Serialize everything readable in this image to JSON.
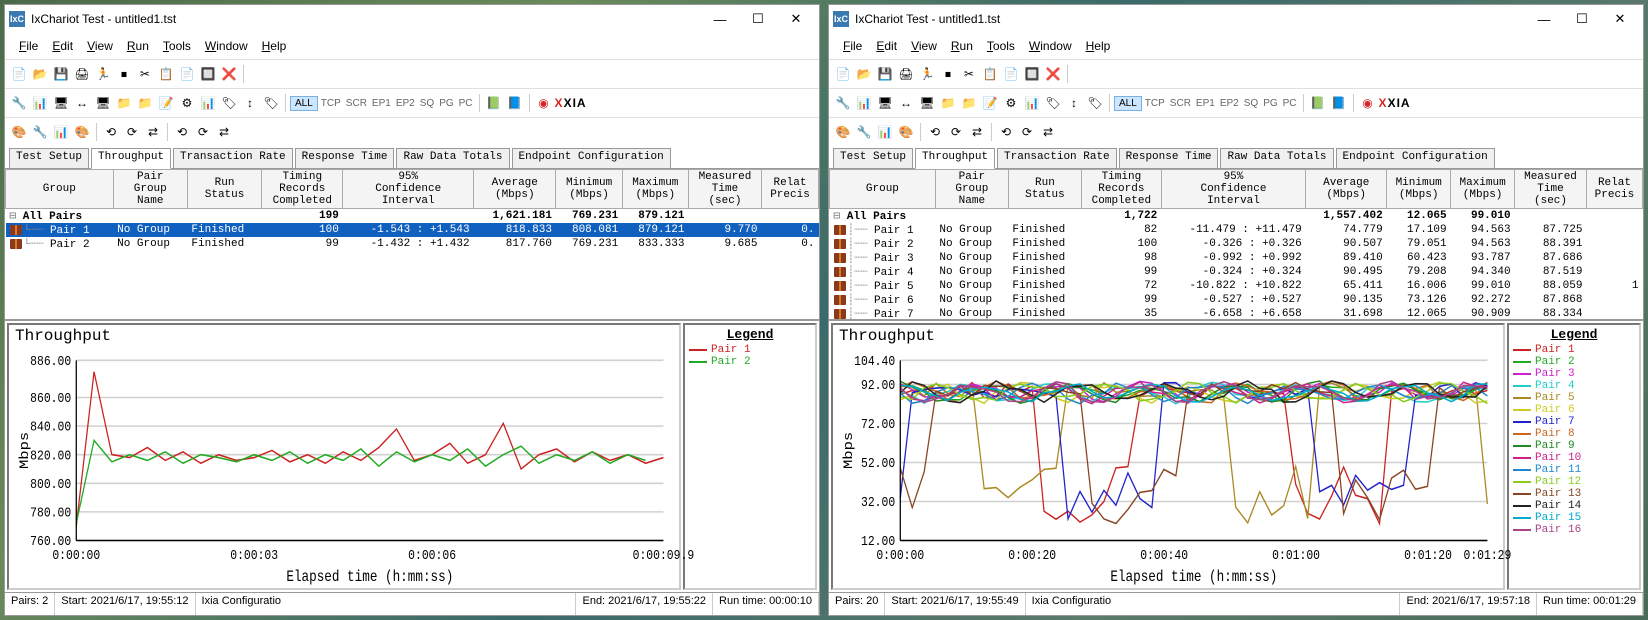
{
  "common": {
    "app_icon": "IxC",
    "title": "IxChariot Test - untitled1.tst",
    "menus": [
      "File",
      "Edit",
      "View",
      "Run",
      "Tools",
      "Window",
      "Help"
    ],
    "tabs": [
      "Test Setup",
      "Throughput",
      "Transaction Rate",
      "Response Time",
      "Raw Data Totals",
      "Endpoint Configuration"
    ],
    "active_tab": 1,
    "toolbar2_txt": [
      "TCP",
      "SCR",
      "EP1",
      "EP2",
      "SQ",
      "PG",
      "PC"
    ],
    "toolbar2_all": "ALL",
    "ixia": "IXIA",
    "grid_headers": [
      "Group",
      "Pair Group Name",
      "Run Status",
      "Timing Records Completed",
      "95% Confidence Interval",
      "Average (Mbps)",
      "Minimum (Mbps)",
      "Maximum (Mbps)",
      "Measured Time (sec)",
      "Relat Precis"
    ],
    "allpairs_label": "All Pairs",
    "chart_title": "Throughput",
    "legend_title": "Legend",
    "ylabel": "Mbps",
    "xlabel": "Elapsed time (h:mm:ss)",
    "status_labels": {
      "pairs": "Pairs:",
      "start": "Start:",
      "cfg": "Ixia Configuratio",
      "end": "End:",
      "run": "Run time:"
    }
  },
  "left": {
    "summary": {
      "records": "199",
      "avg": "1,621.181",
      "min": "769.231",
      "max": "879.121"
    },
    "rows": [
      {
        "pair": "Pair 1",
        "grp": "No Group",
        "status": "Finished",
        "rec": "100",
        "ci": "-1.543 : +1.543",
        "avg": "818.833",
        "min": "808.081",
        "max": "879.121",
        "time": "9.770",
        "rel": "0.",
        "sel": true
      },
      {
        "pair": "Pair 2",
        "grp": "No Group",
        "status": "Finished",
        "rec": "99",
        "ci": "-1.432 : +1.432",
        "avg": "817.760",
        "min": "769.231",
        "max": "833.333",
        "time": "9.685",
        "rel": "0."
      }
    ],
    "chart": {
      "ylim": [
        760,
        886
      ],
      "yticks": [
        760,
        780,
        800,
        820,
        840,
        860,
        886
      ],
      "yticklabels": [
        "760.00",
        "780.00",
        "800.00",
        "820.00",
        "840.00",
        "860.00",
        "886.00"
      ],
      "xticks": [
        0,
        3,
        6,
        9.9
      ],
      "xticklabels": [
        "0:00:00",
        "0:00:03",
        "0:00:06",
        "0:00:09.9"
      ],
      "grid_color": "#d0d0d0",
      "axis_color": "#000",
      "series": [
        {
          "name": "Pair 1",
          "color": "#cc2222",
          "x": [
            0,
            0.3,
            0.6,
            0.9,
            1.2,
            1.5,
            1.8,
            2.1,
            2.4,
            2.7,
            3,
            3.3,
            3.6,
            3.9,
            4.2,
            4.5,
            4.8,
            5.1,
            5.4,
            5.7,
            6,
            6.3,
            6.6,
            6.9,
            7.2,
            7.5,
            7.8,
            8.1,
            8.4,
            8.7,
            9,
            9.3,
            9.6,
            9.9
          ],
          "y": [
            770,
            878,
            820,
            818,
            825,
            816,
            822,
            814,
            820,
            816,
            818,
            823,
            815,
            820,
            814,
            822,
            816,
            825,
            838,
            816,
            820,
            828,
            814,
            820,
            842,
            810,
            820,
            824,
            815,
            822,
            816,
            820,
            814,
            818
          ]
        },
        {
          "name": "Pair 2",
          "color": "#22aa22",
          "x": [
            0,
            0.3,
            0.6,
            0.9,
            1.2,
            1.5,
            1.8,
            2.1,
            2.4,
            2.7,
            3,
            3.3,
            3.6,
            3.9,
            4.2,
            4.5,
            4.8,
            5.1,
            5.4,
            5.7,
            6,
            6.3,
            6.6,
            6.9,
            7.2,
            7.5,
            7.8,
            8.1,
            8.4,
            8.7,
            9,
            9.3,
            9.6
          ],
          "y": [
            772,
            830,
            815,
            820,
            816,
            822,
            814,
            820,
            818,
            815,
            820,
            816,
            822,
            814,
            820,
            816,
            824,
            812,
            822,
            815,
            820,
            816,
            824,
            812,
            820,
            826,
            814,
            820,
            816,
            822,
            814,
            820,
            816
          ]
        }
      ]
    },
    "status": {
      "pairs": "2",
      "start": "2021/6/17, 19:55:12",
      "end": "2021/6/17, 19:55:22",
      "run": "00:00:10"
    }
  },
  "right": {
    "summary": {
      "records": "1,722",
      "avg": "1,557.402",
      "min": "12.065",
      "max": "99.010"
    },
    "rows": [
      {
        "pair": "Pair 1",
        "grp": "No Group",
        "status": "Finished",
        "rec": "82",
        "ci": "-11.479 : +11.479",
        "avg": "74.779",
        "min": "17.109",
        "max": "94.563",
        "time": "87.725",
        "rel": ""
      },
      {
        "pair": "Pair 2",
        "grp": "No Group",
        "status": "Finished",
        "rec": "100",
        "ci": "-0.326 : +0.326",
        "avg": "90.507",
        "min": "79.051",
        "max": "94.563",
        "time": "88.391",
        "rel": ""
      },
      {
        "pair": "Pair 3",
        "grp": "No Group",
        "status": "Finished",
        "rec": "98",
        "ci": "-0.992 : +0.992",
        "avg": "89.410",
        "min": "60.423",
        "max": "93.787",
        "time": "87.686",
        "rel": ""
      },
      {
        "pair": "Pair 4",
        "grp": "No Group",
        "status": "Finished",
        "rec": "99",
        "ci": "-0.324 : +0.324",
        "avg": "90.495",
        "min": "79.208",
        "max": "94.340",
        "time": "87.519",
        "rel": ""
      },
      {
        "pair": "Pair 5",
        "grp": "No Group",
        "status": "Finished",
        "rec": "72",
        "ci": "-10.822 : +10.822",
        "avg": "65.411",
        "min": "16.006",
        "max": "99.010",
        "time": "88.059",
        "rel": "1"
      },
      {
        "pair": "Pair 6",
        "grp": "No Group",
        "status": "Finished",
        "rec": "99",
        "ci": "-0.527 : +0.527",
        "avg": "90.135",
        "min": "73.126",
        "max": "92.272",
        "time": "87.868",
        "rel": ""
      },
      {
        "pair": "Pair 7",
        "grp": "No Group",
        "status": "Finished",
        "rec": "35",
        "ci": "-6.658 : +6.658",
        "avg": "31.698",
        "min": "12.065",
        "max": "90.909",
        "time": "88.334",
        "rel": ""
      }
    ],
    "chart": {
      "ylim": [
        12,
        104.4
      ],
      "yticks": [
        12,
        32,
        52,
        72,
        92,
        104.4
      ],
      "yticklabels": [
        "12.00",
        "32.00",
        "52.00",
        "72.00",
        "92.00",
        "104.40"
      ],
      "xticks": [
        0,
        20,
        40,
        60,
        80,
        89
      ],
      "xticklabels": [
        "0:00:00",
        "0:00:20",
        "0:00:40",
        "0:01:00",
        "0:01:20",
        "0:01:29"
      ],
      "grid_color": "#d0d0d0",
      "axis_color": "#000",
      "series_colors": [
        "#cc2222",
        "#22aa22",
        "#cc22cc",
        "#22cccc",
        "#aa8822",
        "#cccc22",
        "#2222cc",
        "#cc6622",
        "#228822",
        "#cc2288",
        "#2288cc",
        "#88cc22",
        "#884422",
        "#222222",
        "#00aacc",
        "#aa4488"
      ],
      "legend_labels": [
        "Pair 1",
        "Pair 2",
        "Pair 3",
        "Pair 4",
        "Pair 5",
        "Pair 6",
        "Pair 7",
        "Pair 8",
        "Pair 9",
        "Pair 10",
        "Pair 11",
        "Pair 12",
        "Pair 13",
        "Pair 14",
        "Pair 15",
        "Pair 16"
      ]
    },
    "status": {
      "pairs": "20",
      "start": "2021/6/17, 19:55:49",
      "end": "2021/6/17, 19:57:18",
      "run": "00:01:29"
    }
  }
}
